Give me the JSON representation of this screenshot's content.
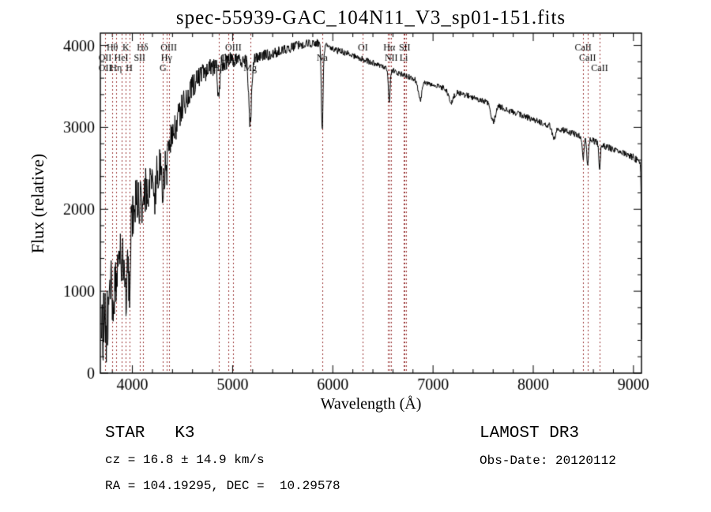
{
  "chart_data": {
    "type": "line",
    "title": "spec-55939-GAC_104N11_V3_sp01-151.fits",
    "xlabel": "Wavelength (Å)",
    "ylabel": "Flux (relative)",
    "xlim": [
      3680,
      9080
    ],
    "ylim": [
      0,
      4150
    ],
    "x_ticks": [
      4000,
      5000,
      6000,
      7000,
      8000,
      9000
    ],
    "y_ticks": [
      0,
      1000,
      2000,
      3000,
      4000
    ],
    "x_major_step": 1000,
    "y_major_step": 1000,
    "x_minor_step": 200,
    "y_minor_step": 200,
    "grid": false,
    "legend": false,
    "line_color": "#000000",
    "marker_line_color": "#993333",
    "sample_start": 3692,
    "sample_end": 9080,
    "sample_step": 4,
    "noise_seed": 20120112,
    "baseline": [
      [
        3690,
        520
      ],
      [
        3720,
        600
      ],
      [
        3760,
        760
      ],
      [
        3800,
        950
      ],
      [
        3850,
        1250
      ],
      [
        3900,
        1550
      ],
      [
        3950,
        1720
      ],
      [
        4000,
        2000
      ],
      [
        4100,
        2160
      ],
      [
        4200,
        2360
      ],
      [
        4300,
        2620
      ],
      [
        4400,
        2920
      ],
      [
        4500,
        3260
      ],
      [
        4600,
        3500
      ],
      [
        4700,
        3650
      ],
      [
        4800,
        3730
      ],
      [
        4900,
        3790
      ],
      [
        5000,
        3830
      ],
      [
        5100,
        3815
      ],
      [
        5250,
        3850
      ],
      [
        5400,
        3905
      ],
      [
        5550,
        3965
      ],
      [
        5700,
        4015
      ],
      [
        5850,
        4030
      ],
      [
        6000,
        3955
      ],
      [
        6150,
        3900
      ],
      [
        6300,
        3830
      ],
      [
        6450,
        3765
      ],
      [
        6600,
        3690
      ],
      [
        6800,
        3595
      ],
      [
        7000,
        3520
      ],
      [
        7200,
        3445
      ],
      [
        7400,
        3365
      ],
      [
        7600,
        3285
      ],
      [
        7800,
        3185
      ],
      [
        8000,
        3095
      ],
      [
        8200,
        3005
      ],
      [
        8400,
        2925
      ],
      [
        8600,
        2835
      ],
      [
        8800,
        2725
      ],
      [
        9000,
        2635
      ],
      [
        9050,
        2585
      ],
      [
        9070,
        2545
      ],
      [
        9076,
        2200
      ],
      [
        9080,
        430
      ]
    ],
    "absorption_features": [
      [
        3934,
        820,
        12
      ],
      [
        3969,
        760,
        12
      ],
      [
        4102,
        360,
        10
      ],
      [
        4227,
        260,
        8
      ],
      [
        4305,
        360,
        14
      ],
      [
        4341,
        300,
        9
      ],
      [
        4861,
        400,
        10
      ],
      [
        5175,
        780,
        14
      ],
      [
        5894,
        1020,
        9
      ],
      [
        6563,
        420,
        9
      ],
      [
        6870,
        240,
        18
      ],
      [
        7180,
        140,
        25
      ],
      [
        7600,
        210,
        22
      ],
      [
        8205,
        150,
        15
      ],
      [
        8498,
        270,
        8
      ],
      [
        8542,
        310,
        8
      ],
      [
        8662,
        310,
        8
      ]
    ],
    "noise_profile": [
      [
        3690,
        600
      ],
      [
        3740,
        560
      ],
      [
        3800,
        480
      ],
      [
        3870,
        400
      ],
      [
        3950,
        340
      ],
      [
        4050,
        300
      ],
      [
        4200,
        270
      ],
      [
        4350,
        220
      ],
      [
        4500,
        170
      ],
      [
        4700,
        130
      ],
      [
        4900,
        105
      ],
      [
        5200,
        80
      ],
      [
        5600,
        60
      ],
      [
        6000,
        42
      ],
      [
        6500,
        36
      ],
      [
        7000,
        32
      ],
      [
        7600,
        38
      ],
      [
        8200,
        36
      ],
      [
        8700,
        40
      ],
      [
        9000,
        42
      ],
      [
        9080,
        45
      ]
    ],
    "spectral_lines": [
      {
        "label": "OII",
        "wavelength": 3727.1,
        "row": 2
      },
      {
        "label": "OII",
        "wavelength": 3728.8,
        "row": 3
      },
      {
        "label": "Hθ",
        "wavelength": 3799,
        "row": 1
      },
      {
        "label": "Hη",
        "wavelength": 3836,
        "row": 3
      },
      {
        "label": "HeI",
        "wavelength": 3889,
        "row": 2
      },
      {
        "label": "K",
        "wavelength": 3934,
        "row": 1
      },
      {
        "label": "H",
        "wavelength": 3968,
        "row": 3
      },
      {
        "label": "SII",
        "wavelength": 4072,
        "row": 2
      },
      {
        "label": "Hδ",
        "wavelength": 4102,
        "row": 1
      },
      {
        "label": "G",
        "wavelength": 4305,
        "row": 3
      },
      {
        "label": "Hγ",
        "wavelength": 4341,
        "row": 2
      },
      {
        "label": "OIII",
        "wavelength": 4363,
        "row": 1
      },
      {
        "label": "Hβ",
        "wavelength": 4861,
        "row": 3
      },
      {
        "label": "OIII",
        "wavelength": 4959,
        "row": 2
      },
      {
        "label": "OIII",
        "wavelength": 5007,
        "row": 1
      },
      {
        "label": "Mg",
        "wavelength": 5175,
        "row": 3
      },
      {
        "label": "Na",
        "wavelength": 5894,
        "row": 2
      },
      {
        "label": "OI",
        "wavelength": 6300,
        "row": 1
      },
      {
        "label": "",
        "wavelength": 6548,
        "row": 0
      },
      {
        "label": "Hα",
        "wavelength": 6563,
        "row": 1
      },
      {
        "label": "NII",
        "wavelength": 6583,
        "row": 2
      },
      {
        "label": "Li",
        "wavelength": 6708,
        "row": 2
      },
      {
        "label": "SII",
        "wavelength": 6717,
        "row": 1
      },
      {
        "label": "",
        "wavelength": 6731,
        "row": 0
      },
      {
        "label": "CaII",
        "wavelength": 8498,
        "row": 1
      },
      {
        "label": "CaII",
        "wavelength": 8542,
        "row": 2
      },
      {
        "label": "CaII",
        "wavelength": 8662,
        "row": 3
      }
    ]
  },
  "annotations": {
    "class_label": "STAR   K3",
    "cz_label": "cz = 16.8 ± 14.9 km/s",
    "radec_label": "RA = 104.19295, DEC =  10.29578",
    "survey_label": "LAMOST DR3",
    "obsdate_label": "Obs-Date: 20120112"
  }
}
